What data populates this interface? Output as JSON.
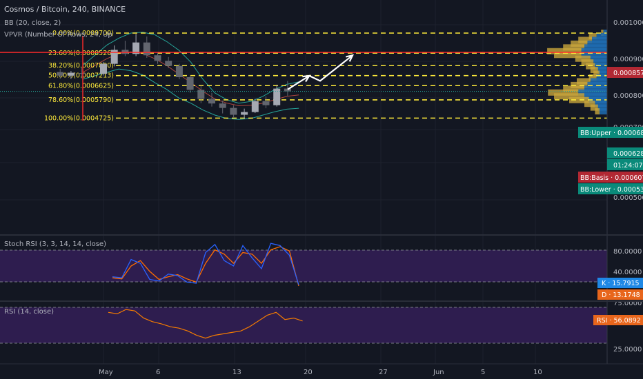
{
  "header": {
    "symbol": "Cosmos / Bitcoin, 240, BINANCE",
    "bb": "BB (20, close, 2)",
    "vpvr": "VPVR (Number Of Rows, 24, Up"
  },
  "price_axis": {
    "ticks": [
      "0.0010000",
      "0.0009000",
      "0.0008000",
      "0.0007000",
      "0.0005000"
    ]
  },
  "badges": {
    "last_price": "0.0008571",
    "bb_upper": "BB:Upper · 0.0006853",
    "current": "0.0006289",
    "countdown": "01:24:07",
    "bb_basis": "BB:Basis · 0.0006077",
    "bb_lower": "BB:Lower · 0.0005301",
    "stoch_k": "K · 15.7915",
    "stoch_d": "D · 13.1748",
    "rsi": "RSI · 56.0892"
  },
  "colors": {
    "background": "#131722",
    "fib": "#ffeb3b",
    "resistance": "#ff2a2a",
    "candle_up": "#a5a9b3",
    "candle_down": "#62656e",
    "bb_band": "#26a69a",
    "bb_basis": "#b0463f",
    "stoch_k": "#2962ff",
    "stoch_d": "#ff6d00",
    "rsi": "#f57c00",
    "pane_bg": "#2e1d4f",
    "vp_up": "#1e6cb1",
    "vp_down": "#c8a53c",
    "badge_teal": "#0a8a7a",
    "badge_red": "#b22833",
    "badge_blue": "#1f88e5",
    "badge_orange": "#e8661c"
  },
  "stoch": {
    "label": "Stoch RSI (3, 3, 14, 14, close)",
    "ticks": [
      "80.0000",
      "40.0000"
    ]
  },
  "rsi": {
    "label": "RSI (14, close)",
    "ticks": [
      "75.0000",
      "25.0000"
    ]
  },
  "time_axis": {
    "labels": [
      "May",
      "6",
      "13",
      "20",
      "27",
      "Jun",
      "5",
      "10"
    ]
  },
  "chart_data": {
    "type": "candlestick",
    "title": "Cosmos / Bitcoin, 240, BINANCE",
    "fib_levels": [
      {
        "label": "0.00%(0.0009700)",
        "price": 0.00097
      },
      {
        "label": "23.60%(0.0008526)",
        "price": 0.0008526
      },
      {
        "label": "38.20%(0.0007800)",
        "price": 0.00078
      },
      {
        "label": "50.00%(0.0007213)",
        "price": 0.0007213
      },
      {
        "label": "61.80%(0.0006625)",
        "price": 0.0006625
      },
      {
        "label": "78.60%(0.0005790)",
        "price": 0.000579
      },
      {
        "label": "100.00%(0.0004725)",
        "price": 0.0004725
      }
    ],
    "resistance_price": 0.0008571,
    "current_price": 0.0006289,
    "projection_path": [
      {
        "date": "May 18",
        "price": 0.00064
      },
      {
        "date": "May 20",
        "price": 0.00072
      },
      {
        "date": "May 21",
        "price": 0.00069
      },
      {
        "date": "May 24",
        "price": 0.00084
      }
    ],
    "candles": [
      {
        "d": "Apr 28",
        "o": 0.000742,
        "h": 0.00076,
        "l": 0.000702,
        "c": 0.000721
      },
      {
        "d": "Apr 29",
        "o": 0.000721,
        "h": 0.000748,
        "l": 0.000702,
        "c": 0.000738
      },
      {
        "d": "Apr 30",
        "o": 0.000736,
        "h": 0.00077,
        "l": 0.000705,
        "c": 0.000732
      },
      {
        "d": "May 1",
        "o": 0.000732,
        "h": 0.0008,
        "l": 0.000722,
        "c": 0.00079
      },
      {
        "d": "May 2",
        "o": 0.00079,
        "h": 0.000898,
        "l": 0.000775,
        "c": 0.000872
      },
      {
        "d": "May 3",
        "o": 0.000872,
        "h": 0.000925,
        "l": 0.000835,
        "c": 0.000848
      },
      {
        "d": "May 4",
        "o": 0.000848,
        "h": 0.000965,
        "l": 0.000835,
        "c": 0.000915
      },
      {
        "d": "May 5",
        "o": 0.000915,
        "h": 0.00095,
        "l": 0.000825,
        "c": 0.00084
      },
      {
        "d": "May 6",
        "o": 0.00084,
        "h": 0.000858,
        "l": 0.00079,
        "c": 0.000808
      },
      {
        "d": "May 7",
        "o": 0.000808,
        "h": 0.00083,
        "l": 0.000765,
        "c": 0.000778
      },
      {
        "d": "May 8",
        "o": 0.000778,
        "h": 0.00079,
        "l": 0.0007,
        "c": 0.000712
      },
      {
        "d": "May 9",
        "o": 0.000712,
        "h": 0.000722,
        "l": 0.00062,
        "c": 0.000638
      },
      {
        "d": "May 10",
        "o": 0.000638,
        "h": 0.000662,
        "l": 0.00056,
        "c": 0.000585
      },
      {
        "d": "May 11",
        "o": 0.000585,
        "h": 0.00062,
        "l": 0.00054,
        "c": 0.000558
      },
      {
        "d": "May 12",
        "o": 0.000558,
        "h": 0.000575,
        "l": 0.0005,
        "c": 0.000532
      },
      {
        "d": "May 13",
        "o": 0.000532,
        "h": 0.000548,
        "l": 0.000474,
        "c": 0.000492
      },
      {
        "d": "May 14",
        "o": 0.000492,
        "h": 0.000528,
        "l": 0.000468,
        "c": 0.000508
      },
      {
        "d": "May 15",
        "o": 0.000508,
        "h": 0.000585,
        "l": 0.000502,
        "c": 0.000572
      },
      {
        "d": "May 16",
        "o": 0.000572,
        "h": 0.0006,
        "l": 0.00053,
        "c": 0.000548
      },
      {
        "d": "May 17",
        "o": 0.000548,
        "h": 0.000668,
        "l": 0.00054,
        "c": 0.000645
      },
      {
        "d": "May 18",
        "o": 0.000645,
        "h": 0.00069,
        "l": 0.000602,
        "c": 0.000629
      }
    ],
    "bollinger": {
      "upper": [
        0.00078,
        0.00084,
        0.0009,
        0.00094,
        0.00097,
        0.000975,
        0.00096,
        0.00092,
        0.00087,
        0.0008,
        0.0007,
        0.00062,
        0.00058,
        0.00056,
        0.00057,
        0.0006,
        0.00064,
        0.00067,
        0.000685
      ],
      "basis": [
        0.00074,
        0.00078,
        0.00082,
        0.00085,
        0.00086,
        0.00085,
        0.00082,
        0.00078,
        0.00073,
        0.00068,
        0.00063,
        0.000585,
        0.00056,
        0.000545,
        0.000548,
        0.00056,
        0.00058,
        0.0006,
        0.000608
      ],
      "lower": [
        0.0007,
        0.00072,
        0.00074,
        0.00076,
        0.00075,
        0.000725,
        0.00068,
        0.00064,
        0.00059,
        0.00056,
        0.00052,
        0.00049,
        0.00047,
        0.000465,
        0.00047,
        0.00049,
        0.00051,
        0.000525,
        0.00053
      ]
    },
    "volume_profile": [
      {
        "price": 0.00097,
        "up": 5,
        "down": 3
      },
      {
        "price": 0.00095,
        "up": 14,
        "down": 10
      },
      {
        "price": 0.000928,
        "up": 20,
        "down": 18
      },
      {
        "price": 0.000906,
        "up": 26,
        "down": 22
      },
      {
        "price": 0.000884,
        "up": 30,
        "down": 28
      },
      {
        "price": 0.000862,
        "up": 34,
        "down": 45
      },
      {
        "price": 0.00084,
        "up": 34,
        "down": 36
      },
      {
        "price": 0.000818,
        "up": 22,
        "down": 20
      },
      {
        "price": 0.000796,
        "up": 18,
        "down": 16
      },
      {
        "price": 0.000774,
        "up": 16,
        "down": 12
      },
      {
        "price": 0.000752,
        "up": 12,
        "down": 10
      },
      {
        "price": 0.00073,
        "up": 10,
        "down": 8
      },
      {
        "price": 0.000708,
        "up": 14,
        "down": 10
      },
      {
        "price": 0.000686,
        "up": 22,
        "down": 18
      },
      {
        "price": 0.000664,
        "up": 26,
        "down": 22
      },
      {
        "price": 0.000642,
        "up": 30,
        "down": 28
      },
      {
        "price": 0.00062,
        "up": 38,
        "down": 40
      },
      {
        "price": 0.000598,
        "up": 30,
        "down": 40
      },
      {
        "price": 0.000576,
        "up": 24,
        "down": 26
      },
      {
        "price": 0.000554,
        "up": 16,
        "down": 14
      },
      {
        "price": 0.000532,
        "up": 12,
        "down": 10
      },
      {
        "price": 0.00051,
        "up": 10,
        "down": 6
      }
    ],
    "stoch_rsi": {
      "k": [
        30,
        28,
        62,
        55,
        25,
        22,
        35,
        32,
        20,
        18,
        75,
        90,
        60,
        50,
        88,
        65,
        45,
        92,
        88,
        70,
        15
      ],
      "d": [
        28,
        26,
        50,
        60,
        40,
        25,
        30,
        34,
        26,
        20,
        55,
        80,
        72,
        55,
        75,
        72,
        55,
        80,
        86,
        78,
        13
      ]
    },
    "rsi": [
      68,
      66,
      72,
      70,
      60,
      55,
      52,
      48,
      46,
      42,
      36,
      32,
      36,
      38,
      40,
      42,
      48,
      56,
      64,
      68,
      58,
      60,
      56
    ]
  }
}
